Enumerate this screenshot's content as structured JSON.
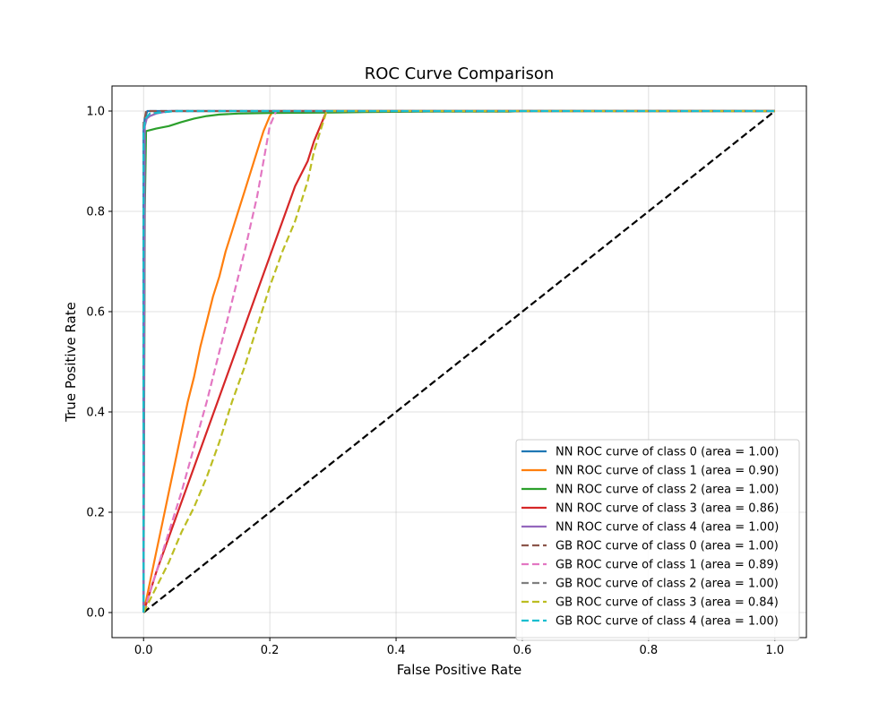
{
  "chart_data": {
    "type": "line",
    "title": "ROC Curve Comparison",
    "xlabel": "False Positive Rate",
    "ylabel": "True Positive Rate",
    "xlim": [
      -0.05,
      1.05
    ],
    "ylim": [
      -0.05,
      1.05
    ],
    "x_ticks": [
      0.0,
      0.2,
      0.4,
      0.6,
      0.8,
      1.0
    ],
    "y_ticks": [
      0.0,
      0.2,
      0.4,
      0.6,
      0.8,
      1.0
    ],
    "x_tick_labels": [
      "0.0",
      "0.2",
      "0.4",
      "0.6",
      "0.8",
      "1.0"
    ],
    "y_tick_labels": [
      "0.0",
      "0.2",
      "0.4",
      "0.6",
      "0.8",
      "1.0"
    ],
    "grid": true,
    "legend_position": "lower-right",
    "series": [
      {
        "name": "NN ROC curve of class 0 (area = 1.00)",
        "color": "#1f77b4",
        "dash": "solid",
        "x": [
          0.0,
          0.0,
          0.002,
          0.006,
          1.0
        ],
        "y": [
          0.0,
          0.96,
          0.985,
          1.0,
          1.0
        ]
      },
      {
        "name": "NN ROC curve of class 1 (area = 0.90)",
        "color": "#ff7f0e",
        "dash": "solid",
        "x": [
          0.0,
          0.01,
          0.02,
          0.03,
          0.04,
          0.05,
          0.06,
          0.07,
          0.08,
          0.09,
          0.1,
          0.11,
          0.12,
          0.13,
          0.14,
          0.15,
          0.16,
          0.17,
          0.18,
          0.19,
          0.2,
          0.205,
          0.25,
          1.0
        ],
        "y": [
          0.0,
          0.06,
          0.12,
          0.18,
          0.24,
          0.3,
          0.36,
          0.42,
          0.47,
          0.53,
          0.58,
          0.63,
          0.67,
          0.72,
          0.76,
          0.8,
          0.84,
          0.88,
          0.92,
          0.96,
          0.99,
          1.0,
          1.0,
          1.0
        ]
      },
      {
        "name": "NN ROC curve of class 2 (area = 1.00)",
        "color": "#2ca02c",
        "dash": "solid",
        "x": [
          0.0,
          0.002,
          0.004,
          0.02,
          0.04,
          0.06,
          0.08,
          0.1,
          0.12,
          0.15,
          0.2,
          0.3,
          0.35,
          0.45,
          0.58,
          0.6,
          1.0
        ],
        "y": [
          0.0,
          0.8,
          0.96,
          0.965,
          0.97,
          0.978,
          0.985,
          0.99,
          0.993,
          0.995,
          0.996,
          0.997,
          0.998,
          0.999,
          0.999,
          1.0,
          1.0
        ]
      },
      {
        "name": "NN ROC curve of class 3 (area = 0.86)",
        "color": "#d62728",
        "dash": "solid",
        "x": [
          0.0,
          0.02,
          0.04,
          0.06,
          0.08,
          0.1,
          0.12,
          0.14,
          0.16,
          0.18,
          0.2,
          0.22,
          0.24,
          0.26,
          0.27,
          0.28,
          0.29,
          0.3,
          1.0
        ],
        "y": [
          0.0,
          0.08,
          0.15,
          0.22,
          0.29,
          0.36,
          0.43,
          0.5,
          0.57,
          0.64,
          0.71,
          0.78,
          0.85,
          0.9,
          0.94,
          0.97,
          1.0,
          1.0,
          1.0
        ]
      },
      {
        "name": "NN ROC curve of class 4 (area = 1.00)",
        "color": "#9467bd",
        "dash": "solid",
        "x": [
          0.0,
          0.002,
          0.005,
          0.01,
          0.02,
          0.04,
          1.0
        ],
        "y": [
          0.0,
          0.97,
          0.985,
          0.99,
          0.995,
          1.0,
          1.0
        ]
      },
      {
        "name": "GB ROC curve of class 0 (area = 1.00)",
        "color": "#8c564b",
        "dash": "dashed",
        "x": [
          0.0,
          0.0,
          0.004,
          1.0
        ],
        "y": [
          0.0,
          0.97,
          1.0,
          1.0
        ]
      },
      {
        "name": "GB ROC curve of class 1 (area = 0.89)",
        "color": "#e377c2",
        "dash": "dashed",
        "x": [
          0.0,
          0.02,
          0.04,
          0.06,
          0.08,
          0.1,
          0.12,
          0.14,
          0.16,
          0.18,
          0.19,
          0.2,
          0.21,
          1.0
        ],
        "y": [
          0.0,
          0.08,
          0.16,
          0.24,
          0.33,
          0.42,
          0.52,
          0.62,
          0.72,
          0.83,
          0.9,
          0.97,
          1.0,
          1.0
        ]
      },
      {
        "name": "GB ROC curve of class 2 (area = 1.00)",
        "color": "#7f7f7f",
        "dash": "dashed",
        "x": [
          0.0,
          0.0,
          0.01,
          0.05,
          1.0
        ],
        "y": [
          0.0,
          0.98,
          0.995,
          1.0,
          1.0
        ]
      },
      {
        "name": "GB ROC curve of class 3 (area = 0.84)",
        "color": "#bcbd22",
        "dash": "dashed",
        "x": [
          0.0,
          0.02,
          0.04,
          0.06,
          0.08,
          0.1,
          0.12,
          0.14,
          0.16,
          0.18,
          0.2,
          0.22,
          0.24,
          0.26,
          0.27,
          0.28,
          0.29,
          1.0
        ],
        "y": [
          0.0,
          0.05,
          0.1,
          0.16,
          0.21,
          0.27,
          0.34,
          0.42,
          0.49,
          0.57,
          0.65,
          0.72,
          0.78,
          0.86,
          0.92,
          0.96,
          1.0,
          1.0
        ]
      },
      {
        "name": "GB ROC curve of class 4 (area = 1.00)",
        "color": "#17becf",
        "dash": "dashed",
        "x": [
          0.0,
          0.0,
          0.003,
          0.01,
          0.05,
          1.0
        ],
        "y": [
          0.0,
          0.96,
          0.985,
          0.995,
          1.0,
          1.0
        ]
      }
    ],
    "reference_line": {
      "x": [
        0.0,
        1.0
      ],
      "y": [
        0.0,
        1.0
      ],
      "color": "#000000",
      "dash": "dashed"
    }
  }
}
